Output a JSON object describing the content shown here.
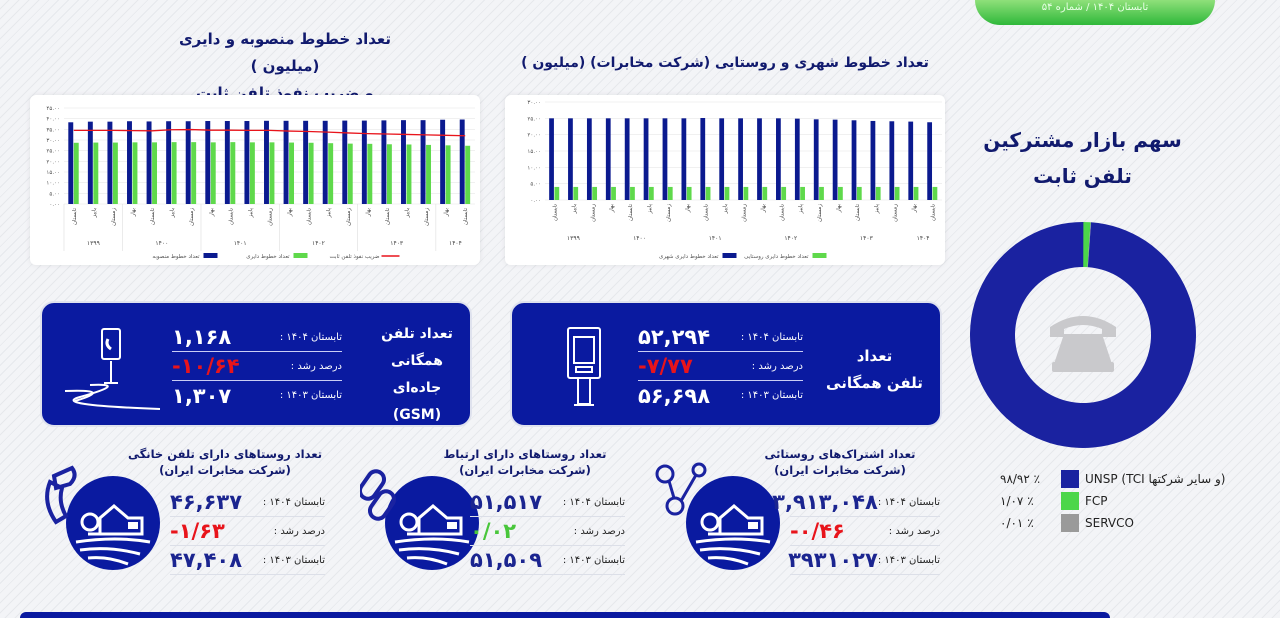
{
  "header": {
    "issue": "تابستان ۱۴۰۴ / شماره ۵۴"
  },
  "chart_left": {
    "title_line1": "تعداد خطوط منصوبه و دایری (میلیون )",
    "title_line2": "و ضریب نفوذ تلفن ثابت"
  },
  "chart_right": {
    "title": "تعداد خطوط شهری و روستایی (شرکت مخابرات) (میلیون )"
  },
  "market_share": {
    "title_line1": "سهم بازار مشترکین",
    "title_line2": "تلفن ثابت"
  },
  "chart_data": [
    {
      "type": "bar",
      "title": "تعداد خطوط منصوبه و دایری (میلیون ) و ضریب نفوذ تلفن ثابت",
      "categories": [
        "تابستان",
        "پاییز",
        "زمستان",
        "بهار",
        "تابستان",
        "پاییز",
        "زمستان",
        "بهار",
        "تابستان",
        "پاییز",
        "زمستان",
        "بهار",
        "تابستان",
        "پاییز",
        "زمستان",
        "بهار",
        "تابستان",
        "پاییز",
        "زمستان",
        "بهار",
        "تابستان"
      ],
      "groups": [
        {
          "label": "۱۳۹۹",
          "count": 3
        },
        {
          "label": "۱۴۰۰",
          "count": 4
        },
        {
          "label": "۱۴۰۱",
          "count": 4
        },
        {
          "label": "۱۴۰۲",
          "count": 4
        },
        {
          "label": "۱۴۰۳",
          "count": 4
        },
        {
          "label": "۱۴۰۴",
          "count": 2
        }
      ],
      "yticks": [
        "۰.۰۰",
        "۵.۰۰",
        "۱۰.۰۰",
        "۱۵.۰۰",
        "۲۰.۰۰",
        "۲۵.۰۰",
        "۳۰.۰۰",
        "۳۵.۰۰",
        "۴۰.۰۰",
        "۴۵.۰۰"
      ],
      "ylim": [
        0,
        45
      ],
      "grid": true,
      "legend": "bottom",
      "series": [
        {
          "name": "تعداد خطوط منصوبه",
          "kind": "bar",
          "color": "#0b1a8f",
          "values": [
            38.3,
            38.6,
            38.6,
            38.8,
            38.7,
            38.8,
            38.8,
            38.9,
            38.9,
            38.9,
            39.0,
            39.0,
            39.0,
            39.0,
            39.1,
            39.1,
            39.2,
            39.3,
            39.3,
            39.5,
            39.6
          ]
        },
        {
          "name": "تعداد خطوط دایری",
          "kind": "bar",
          "color": "#5fd94b",
          "values": [
            28.7,
            28.8,
            28.8,
            28.9,
            28.9,
            29.0,
            29.0,
            28.9,
            29.0,
            28.9,
            28.9,
            28.8,
            28.7,
            28.5,
            28.3,
            28.2,
            28.0,
            27.9,
            27.7,
            27.5,
            27.3
          ]
        },
        {
          "name": "ضریب نفوذ تلفن ثابت",
          "kind": "line",
          "color": "#e8141b",
          "values": [
            34.5,
            34.5,
            34.5,
            34.4,
            34.3,
            34.8,
            34.9,
            34.6,
            34.6,
            34.5,
            34.5,
            34.2,
            34.0,
            33.7,
            33.3,
            33.0,
            32.8,
            32.6,
            32.4,
            32.2,
            32.0
          ]
        }
      ]
    },
    {
      "type": "bar",
      "title": "تعداد خطوط شهری و روستایی (شرکت مخابرات) (میلیون )",
      "categories": [
        "تابستان",
        "پاییز",
        "زمستان",
        "بهار",
        "تابستان",
        "پاییز",
        "زمستان",
        "بهار",
        "تابستان",
        "پاییز",
        "زمستان",
        "بهار",
        "تابستان",
        "پاییز",
        "زمستان",
        "بهار",
        "تابستان",
        "پاییز",
        "زمستان",
        "بهار",
        "تابستان"
      ],
      "groups": [
        {
          "label": "۱۳۹۹",
          "count": 3
        },
        {
          "label": "۱۴۰۰",
          "count": 4
        },
        {
          "label": "۱۴۰۱",
          "count": 4
        },
        {
          "label": "۱۴۰۲",
          "count": 4
        },
        {
          "label": "۱۴۰۳",
          "count": 4
        },
        {
          "label": "۱۴۰۴",
          "count": 2
        }
      ],
      "yticks": [
        "۰.۰۰",
        "۵.۰۰",
        "۱۰.۰۰",
        "۱۵.۰۰",
        "۲۰.۰۰",
        "۲۵.۰۰",
        "۳۰.۰۰"
      ],
      "ylim": [
        0,
        30
      ],
      "grid": true,
      "legend": "bottom",
      "series": [
        {
          "name": "تعداد خطوط دایری شهری",
          "kind": "bar",
          "color": "#0b1a8f",
          "values": [
            25.0,
            25.0,
            25.0,
            25.0,
            25.0,
            25.0,
            25.0,
            25.0,
            25.1,
            25.0,
            25.0,
            25.0,
            25.0,
            24.9,
            24.7,
            24.6,
            24.4,
            24.2,
            24.1,
            24.0,
            23.8
          ]
        },
        {
          "name": "تعداد خطوط دایری روستایی",
          "kind": "bar",
          "color": "#5fd94b",
          "values": [
            4.0,
            4.0,
            4.0,
            4.0,
            4.0,
            4.0,
            4.0,
            4.0,
            4.0,
            4.0,
            4.0,
            4.0,
            4.0,
            4.0,
            4.0,
            4.0,
            4.0,
            4.0,
            4.0,
            4.0,
            4.0
          ]
        }
      ]
    },
    {
      "type": "pie",
      "title": "سهم بازار مشترکین تلفن ثابت",
      "donut": true,
      "slices": [
        {
          "label": "UNSP (TCI و سایر شرکتها)",
          "value": 98.92,
          "display": "۹۸/۹۲ ٪",
          "color": "#1a22a0"
        },
        {
          "label": "FCP",
          "value": 1.07,
          "display": "۱/۰۷ ٪",
          "color": "#4cd64a"
        },
        {
          "label": "SERVCO",
          "value": 0.01,
          "display": "۰/۰۱ ٪",
          "color": "#9a9a9a"
        }
      ]
    }
  ],
  "cards": {
    "gsm": {
      "title": [
        "تعداد تلفن",
        "همگانی جاده‌ای",
        "(GSM)"
      ],
      "rows": [
        {
          "label": "تابستان ۱۴۰۴ :",
          "value": "۱,۱۶۸"
        },
        {
          "label": "درصد رشد :",
          "value": "-۱۰/۶۴"
        },
        {
          "label": "تابستان ۱۴۰۳ :",
          "value": "۱,۳۰۷"
        }
      ],
      "icon": "roadside-phone-icon"
    },
    "public": {
      "title": [
        "تعداد",
        "تلفن همگانی"
      ],
      "rows": [
        {
          "label": "تابستان ۱۴۰۴ :",
          "value": "۵۲,۲۹۴"
        },
        {
          "label": "درصد رشد :",
          "value": "-۷/۷۷"
        },
        {
          "label": "تابستان ۱۴۰۳ :",
          "value": "۵۶,۶۹۸"
        }
      ],
      "icon": "phone-booth-icon"
    }
  },
  "items": [
    {
      "title": [
        "تعداد روستاهای دارای تلفن خانگی",
        "(شرکت مخابرات ایران)"
      ],
      "rows": [
        {
          "label": "تابستان ۱۴۰۴ :",
          "value": "۴۶,۶۳۷"
        },
        {
          "label": "درصد رشد :",
          "value": "-۱/۶۳"
        },
        {
          "label": "تابستان ۱۴۰۳ :",
          "value": "۴۷,۴۰۸"
        }
      ],
      "icon": "phone-handset-icon"
    },
    {
      "title": [
        "تعداد روستاهای دارای ارتباط",
        "(شرکت مخابرات ایران)"
      ],
      "rows": [
        {
          "label": "تابستان ۱۴۰۴ :",
          "value": "۵۱,۵۱۷"
        },
        {
          "label": "درصد رشد :",
          "value": "۰/۰۲"
        },
        {
          "label": "تابستان ۱۴۰۳ :",
          "value": "۵۱,۵۰۹"
        }
      ],
      "icon": "link-icon"
    },
    {
      "title": [
        "تعداد اشتراک‌های روستائی",
        "(شرکت مخابرات ایران)"
      ],
      "rows": [
        {
          "label": "تابستان ۱۴۰۴ :",
          "value": "۳,۹۱۳,۰۴۸"
        },
        {
          "label": "درصد رشد :",
          "value": "-۰/۴۶"
        },
        {
          "label": "تابستان ۱۴۰۳ :",
          "value": "۳۹۳۱۰۲۷"
        }
      ],
      "icon": "network-nodes-icon"
    }
  ],
  "colors": {
    "navy": "#0a1aa0",
    "red": "#e8141b",
    "green": "#49c63b"
  }
}
